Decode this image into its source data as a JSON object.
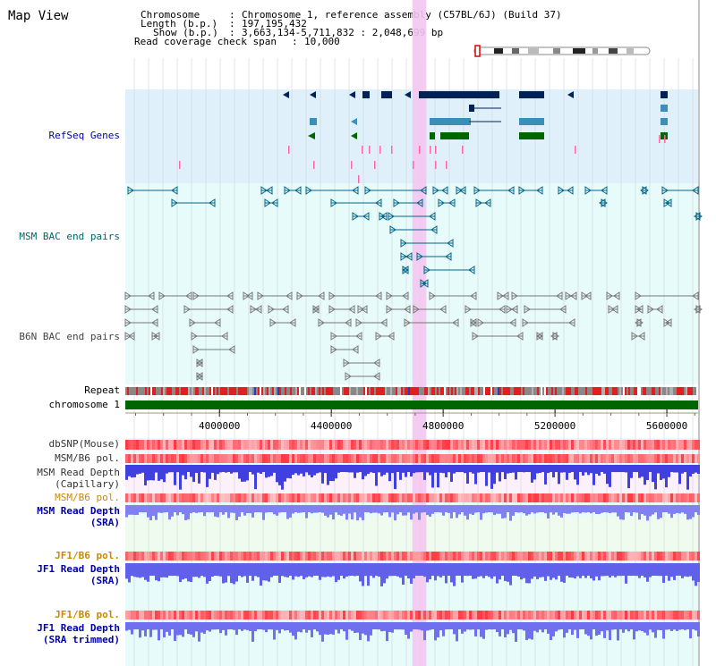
{
  "title": "Map View",
  "header": {
    "chromosome_key": "Chromosome",
    "chromosome_val": "Chromosome 1, reference assembly (C57BL/6J) (Build 37)",
    "length_key": "Length (b.p.)",
    "length_val": "197,195,432",
    "show_key": "Show (b.p.)",
    "show_val": "3,663,134-5,711,832 : 2,048,699 bp",
    "read_key": "Read coverage check span",
    "read_val": "10,000"
  },
  "tracks": {
    "refseq": "RefSeq Genes",
    "msm_bac": "MSM BAC end pairs",
    "b6n_bac": "B6N BAC end pairs",
    "repeat": "Repeat",
    "chromosome": "chromosome 1",
    "dbsnp": "dbSNP(Mouse)",
    "msm_b6_pol_1": "MSM/B6 pol.",
    "msm_depth_cap_1": "MSM Read Depth",
    "msm_depth_cap_2": "(Capillary)",
    "msm_b6_pol_2": "MSM/B6 pol.",
    "msm_depth_sra_1": "MSM Read Depth",
    "msm_depth_sra_2": "(SRA)",
    "jf1_b6_pol_1": "JF1/B6 pol.",
    "jf1_depth_sra_1": "JF1 Read Depth",
    "jf1_depth_sra_2": "(SRA)",
    "jf1_b6_pol_2": "JF1/B6 pol.",
    "jf1_depth_trim_1": "JF1 Read Depth",
    "jf1_depth_trim_2": "(SRA trimmed)"
  },
  "axis": {
    "ticks": [
      {
        "value": 4000000,
        "label": "4000000"
      },
      {
        "value": 4400000,
        "label": "4400000"
      },
      {
        "value": 4800000,
        "label": "4800000"
      },
      {
        "value": 5200000,
        "label": "5200000"
      },
      {
        "value": 5600000,
        "label": "5600000"
      }
    ],
    "range": [
      3663134,
      5711832
    ]
  },
  "highlight_range": [
    4690000,
    4740000
  ],
  "colors": {
    "refseq_bg": "#dff0fa",
    "track_bg": "#e8fbfb",
    "label_blue": "#0000aa",
    "label_teal": "#006666",
    "label_orange": "#cc8800",
    "label_gray": "#333333",
    "highlight": "#f3c7ef",
    "gene_dark": "#002255",
    "gene_mid": "#3a8fb8",
    "gene_green": "#006600",
    "chromosome_green": "#006600"
  }
}
